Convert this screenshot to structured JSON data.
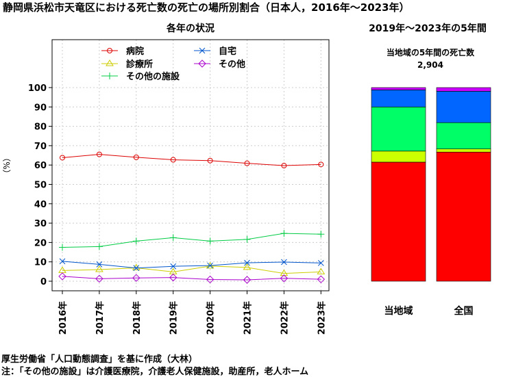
{
  "title": "静岡県浜松市天竜区における死亡数の死亡の場所別割合（日本人，2016年〜2023年）",
  "chart_data": [
    {
      "type": "line",
      "title": "各年の状況",
      "ylabel": "（%）",
      "ylim": [
        0,
        100
      ],
      "yticks": [
        0,
        10,
        20,
        30,
        40,
        50,
        60,
        70,
        80,
        90,
        100
      ],
      "categories": [
        "2016年",
        "2017年",
        "2018年",
        "2019年",
        "2020年",
        "2021年",
        "2022年",
        "2023年"
      ],
      "grid": true,
      "legend_position": "top",
      "series": [
        {
          "name": "病院",
          "color": "#dd0000",
          "marker": "circle",
          "values": [
            63.8,
            65.5,
            64.0,
            62.7,
            62.3,
            60.9,
            59.7,
            60.3
          ]
        },
        {
          "name": "診療所",
          "color": "#cccc00",
          "marker": "triangle",
          "values": [
            5.5,
            6.0,
            6.9,
            4.8,
            7.8,
            7.1,
            4.0,
            4.8
          ]
        },
        {
          "name": "その他の施設",
          "color": "#00cc44",
          "marker": "plus",
          "values": [
            17.5,
            17.9,
            20.7,
            22.5,
            20.7,
            21.6,
            24.7,
            24.3
          ]
        },
        {
          "name": "自宅",
          "color": "#0055cc",
          "marker": "x",
          "values": [
            10.3,
            8.7,
            6.8,
            7.7,
            8.1,
            9.5,
            9.9,
            9.4
          ]
        },
        {
          "name": "その他",
          "color": "#aa00cc",
          "marker": "diamond",
          "values": [
            2.5,
            1.3,
            1.7,
            1.9,
            0.9,
            0.7,
            1.5,
            1.0
          ]
        }
      ]
    },
    {
      "type": "bar",
      "stacked": true,
      "title": "2019年〜2023年の5年間",
      "subtitle": "当地域の5年間の死亡数",
      "subtitle_value": "2,904",
      "categories": [
        "当地域",
        "全国"
      ],
      "ylim": [
        0,
        100
      ],
      "series": [
        {
          "name": "病院",
          "color": "#ff0000",
          "values": [
            61.5,
            66.7
          ]
        },
        {
          "name": "診療所",
          "color": "#ccff00",
          "values": [
            5.7,
            1.6
          ]
        },
        {
          "name": "その他の施設",
          "color": "#00ff66",
          "values": [
            22.8,
            13.6
          ]
        },
        {
          "name": "自宅",
          "color": "#0066ff",
          "values": [
            8.8,
            16.2
          ]
        },
        {
          "name": "その他",
          "color": "#cc00ff",
          "values": [
            1.2,
            1.9
          ]
        }
      ]
    }
  ],
  "notes": {
    "source": "厚生労働省「人口動態調査」を基に作成（大林）",
    "footnote": "注：「その他の施設」は介護医療院，介護老人保健施設，助産所，老人ホーム"
  }
}
